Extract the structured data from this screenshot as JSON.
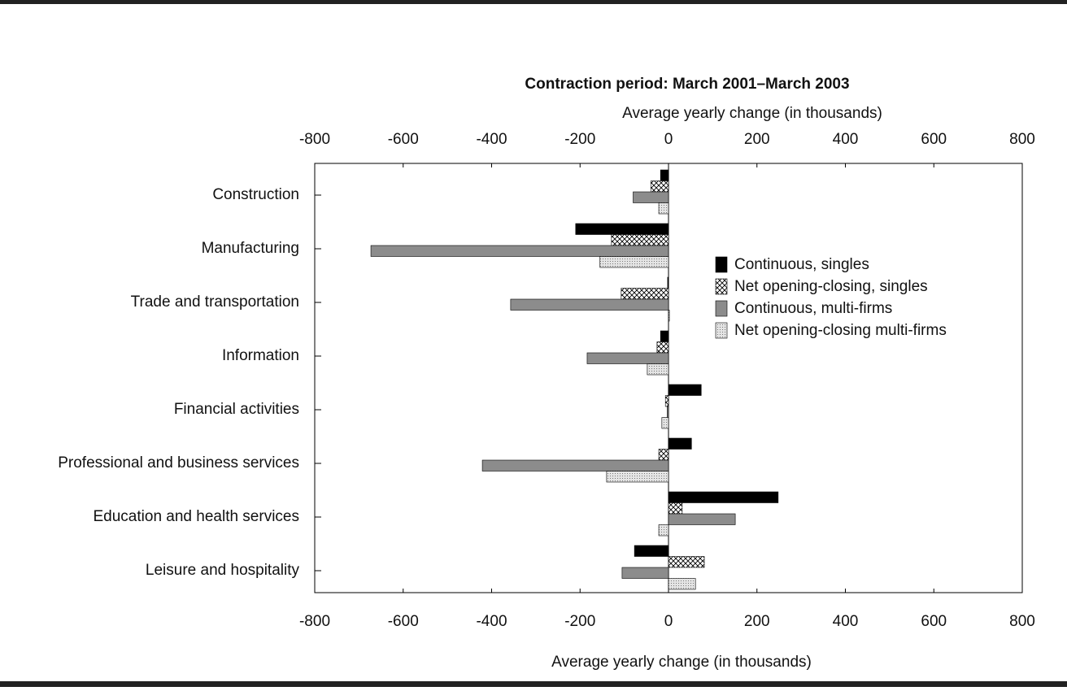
{
  "chart_data": {
    "type": "hbar",
    "title": "Contraction period:  March 2001–March 2003",
    "x2label": "Average yearly change (in thousands)",
    "xlabel": "Average yearly change (in thousands)",
    "categories": [
      "Construction",
      "Manufacturing",
      "Trade and transportation",
      "Information",
      "Financial activities",
      "Professional and business services",
      "Education and health services",
      "Leisure and hospitality"
    ],
    "series": [
      {
        "name": "Continuous, singles",
        "color": "#000000",
        "pattern": "solid",
        "values": [
          -18,
          -210,
          -2,
          -18,
          74,
          52,
          248,
          -77
        ]
      },
      {
        "name": "Net opening-closing, singles",
        "color": "#000000",
        "pattern": "crosshatch",
        "values": [
          -40,
          -129,
          -107,
          -26,
          -7,
          -22,
          31,
          81
        ]
      },
      {
        "name": "Continuous, multi-firms",
        "color": "#8c8c8c",
        "pattern": "solid",
        "values": [
          -80,
          -673,
          -357,
          -184,
          -3,
          -421,
          151,
          -105
        ]
      },
      {
        "name": "Net opening-closing multi-firms",
        "color": "#9a9a9a",
        "pattern": "dots",
        "values": [
          -22,
          -155,
          2,
          -48,
          -15,
          -140,
          -22,
          61
        ]
      }
    ],
    "xlim": [
      -800,
      800
    ],
    "xticks": [
      -800,
      -600,
      -400,
      -200,
      0,
      200,
      400,
      600,
      800
    ],
    "legend": "upper-right"
  }
}
